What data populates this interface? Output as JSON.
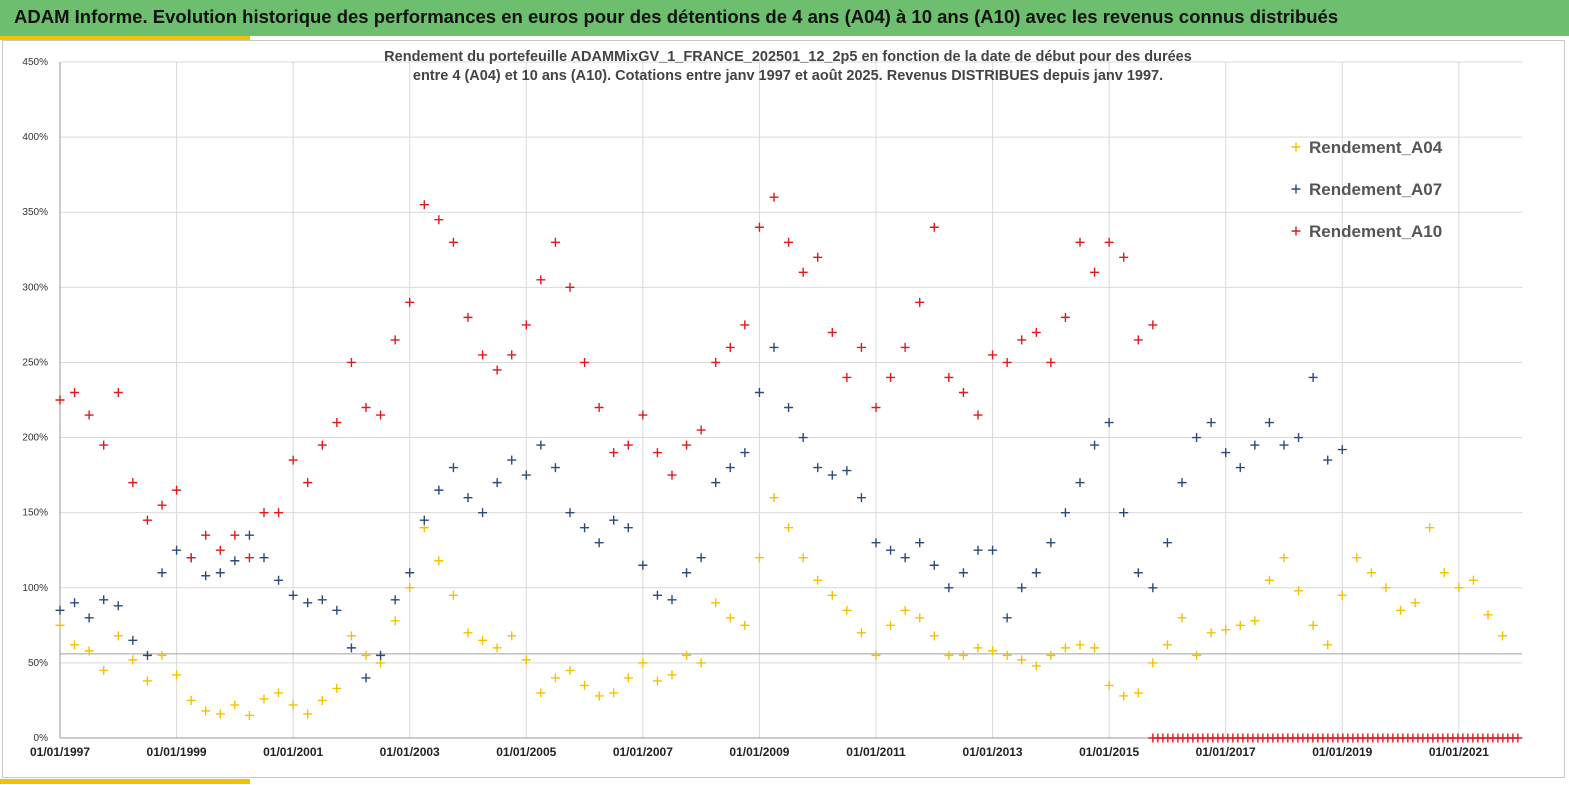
{
  "header": {
    "title": "ADAM Informe. Evolution historique des performances en euros pour des détentions de 4 ans (A04) à 10 ans (A10) avec les revenus connus distribués"
  },
  "chart_data": {
    "type": "scatter",
    "subtitle_lines": [
      "Rendement du portefeuille ADAMMixGV_1_FRANCE_202501_12_2p5  en fonction de la date de début pour des durées",
      "entre 4 (A04) et 10 ans (A10). Cotations  entre janv 1997 et août 2025. Revenus DISTRIBUES depuis janv 1997."
    ],
    "x_ticks": [
      "01/01/1997",
      "01/01/1999",
      "01/01/2001",
      "01/01/2003",
      "01/01/2005",
      "01/01/2007",
      "01/01/2009",
      "01/01/2011",
      "01/01/2013",
      "01/01/2015",
      "01/01/2017",
      "01/01/2019",
      "01/01/2021"
    ],
    "x_range": [
      "1997-01-01",
      "2022-02-01"
    ],
    "y_ticks": [
      "0%",
      "50%",
      "100%",
      "150%",
      "200%",
      "250%",
      "300%",
      "350%",
      "400%",
      "450%"
    ],
    "ylim": [
      0,
      450
    ],
    "grid": true,
    "legend_position": "top-right",
    "series": [
      {
        "name": "Rendement_A04",
        "color": "#f2c200",
        "points": [
          [
            "1997-01",
            75
          ],
          [
            "1997-04",
            62
          ],
          [
            "1997-07",
            58
          ],
          [
            "1997-10",
            45
          ],
          [
            "1998-01",
            68
          ],
          [
            "1998-04",
            52
          ],
          [
            "1998-07",
            38
          ],
          [
            "1998-10",
            55
          ],
          [
            "1999-01",
            42
          ],
          [
            "1999-04",
            25
          ],
          [
            "1999-07",
            18
          ],
          [
            "1999-10",
            16
          ],
          [
            "2000-01",
            22
          ],
          [
            "2000-04",
            15
          ],
          [
            "2000-07",
            26
          ],
          [
            "2000-10",
            30
          ],
          [
            "2001-01",
            22
          ],
          [
            "2001-04",
            16
          ],
          [
            "2001-07",
            25
          ],
          [
            "2001-10",
            33
          ],
          [
            "2002-01",
            68
          ],
          [
            "2002-04",
            55
          ],
          [
            "2002-07",
            50
          ],
          [
            "2002-10",
            78
          ],
          [
            "2003-01",
            100
          ],
          [
            "2003-04",
            140
          ],
          [
            "2003-07",
            118
          ],
          [
            "2003-10",
            95
          ],
          [
            "2004-01",
            70
          ],
          [
            "2004-04",
            65
          ],
          [
            "2004-07",
            60
          ],
          [
            "2004-10",
            68
          ],
          [
            "2005-01",
            52
          ],
          [
            "2005-04",
            30
          ],
          [
            "2005-07",
            40
          ],
          [
            "2005-10",
            45
          ],
          [
            "2006-01",
            35
          ],
          [
            "2006-04",
            28
          ],
          [
            "2006-07",
            30
          ],
          [
            "2006-10",
            40
          ],
          [
            "2007-01",
            50
          ],
          [
            "2007-04",
            38
          ],
          [
            "2007-07",
            42
          ],
          [
            "2007-10",
            55
          ],
          [
            "2008-01",
            50
          ],
          [
            "2008-04",
            90
          ],
          [
            "2008-07",
            80
          ],
          [
            "2008-10",
            75
          ],
          [
            "2009-01",
            120
          ],
          [
            "2009-04",
            160
          ],
          [
            "2009-07",
            140
          ],
          [
            "2009-10",
            120
          ],
          [
            "2010-01",
            105
          ],
          [
            "2010-04",
            95
          ],
          [
            "2010-07",
            85
          ],
          [
            "2010-10",
            70
          ],
          [
            "2011-01",
            55
          ],
          [
            "2011-04",
            75
          ],
          [
            "2011-07",
            85
          ],
          [
            "2011-10",
            80
          ],
          [
            "2012-01",
            68
          ],
          [
            "2012-04",
            55
          ],
          [
            "2012-07",
            55
          ],
          [
            "2012-10",
            60
          ],
          [
            "2013-01",
            58
          ],
          [
            "2013-04",
            55
          ],
          [
            "2013-07",
            52
          ],
          [
            "2013-10",
            48
          ],
          [
            "2014-01",
            55
          ],
          [
            "2014-04",
            60
          ],
          [
            "2014-07",
            62
          ],
          [
            "2014-10",
            60
          ],
          [
            "2015-01",
            35
          ],
          [
            "2015-04",
            28
          ],
          [
            "2015-07",
            30
          ],
          [
            "2015-10",
            50
          ],
          [
            "2016-01",
            62
          ],
          [
            "2016-04",
            80
          ],
          [
            "2016-07",
            55
          ],
          [
            "2016-10",
            70
          ],
          [
            "2017-01",
            72
          ],
          [
            "2017-04",
            75
          ],
          [
            "2017-07",
            78
          ],
          [
            "2017-10",
            105
          ],
          [
            "2018-01",
            120
          ],
          [
            "2018-04",
            98
          ],
          [
            "2018-07",
            75
          ],
          [
            "2018-10",
            62
          ],
          [
            "2019-01",
            95
          ],
          [
            "2019-04",
            120
          ],
          [
            "2019-07",
            110
          ],
          [
            "2019-10",
            100
          ],
          [
            "2020-01",
            85
          ],
          [
            "2020-04",
            90
          ],
          [
            "2020-07",
            140
          ],
          [
            "2020-10",
            110
          ],
          [
            "2021-01",
            100
          ],
          [
            "2021-04",
            105
          ],
          [
            "2021-07",
            82
          ],
          [
            "2021-10",
            68
          ]
        ]
      },
      {
        "name": "Rendement_A07",
        "color": "#2c4a7a",
        "points": [
          [
            "1997-01",
            85
          ],
          [
            "1997-04",
            90
          ],
          [
            "1997-07",
            80
          ],
          [
            "1997-10",
            92
          ],
          [
            "1998-01",
            88
          ],
          [
            "1998-04",
            65
          ],
          [
            "1998-07",
            55
          ],
          [
            "1998-10",
            110
          ],
          [
            "1999-01",
            125
          ],
          [
            "1999-04",
            120
          ],
          [
            "1999-07",
            108
          ],
          [
            "1999-10",
            110
          ],
          [
            "2000-01",
            118
          ],
          [
            "2000-04",
            135
          ],
          [
            "2000-07",
            120
          ],
          [
            "2000-10",
            105
          ],
          [
            "2001-01",
            95
          ],
          [
            "2001-04",
            90
          ],
          [
            "2001-07",
            92
          ],
          [
            "2001-10",
            85
          ],
          [
            "2002-01",
            60
          ],
          [
            "2002-04",
            40
          ],
          [
            "2002-07",
            55
          ],
          [
            "2002-10",
            92
          ],
          [
            "2003-01",
            110
          ],
          [
            "2003-04",
            145
          ],
          [
            "2003-07",
            165
          ],
          [
            "2003-10",
            180
          ],
          [
            "2004-01",
            160
          ],
          [
            "2004-04",
            150
          ],
          [
            "2004-07",
            170
          ],
          [
            "2004-10",
            185
          ],
          [
            "2005-01",
            175
          ],
          [
            "2005-04",
            195
          ],
          [
            "2005-07",
            180
          ],
          [
            "2005-10",
            150
          ],
          [
            "2006-01",
            140
          ],
          [
            "2006-04",
            130
          ],
          [
            "2006-07",
            145
          ],
          [
            "2006-10",
            140
          ],
          [
            "2007-01",
            115
          ],
          [
            "2007-04",
            95
          ],
          [
            "2007-07",
            92
          ],
          [
            "2007-10",
            110
          ],
          [
            "2008-01",
            120
          ],
          [
            "2008-04",
            170
          ],
          [
            "2008-07",
            180
          ],
          [
            "2008-10",
            190
          ],
          [
            "2009-01",
            230
          ],
          [
            "2009-04",
            260
          ],
          [
            "2009-07",
            220
          ],
          [
            "2009-10",
            200
          ],
          [
            "2010-01",
            180
          ],
          [
            "2010-04",
            175
          ],
          [
            "2010-07",
            178
          ],
          [
            "2010-10",
            160
          ],
          [
            "2011-01",
            130
          ],
          [
            "2011-04",
            125
          ],
          [
            "2011-07",
            120
          ],
          [
            "2011-10",
            130
          ],
          [
            "2012-01",
            115
          ],
          [
            "2012-04",
            100
          ],
          [
            "2012-07",
            110
          ],
          [
            "2012-10",
            125
          ],
          [
            "2013-01",
            125
          ],
          [
            "2013-04",
            80
          ],
          [
            "2013-07",
            100
          ],
          [
            "2013-10",
            110
          ],
          [
            "2014-01",
            130
          ],
          [
            "2014-04",
            150
          ],
          [
            "2014-07",
            170
          ],
          [
            "2014-10",
            195
          ],
          [
            "2015-01",
            210
          ],
          [
            "2015-04",
            150
          ],
          [
            "2015-07",
            110
          ],
          [
            "2015-10",
            100
          ],
          [
            "2016-01",
            130
          ],
          [
            "2016-04",
            170
          ],
          [
            "2016-07",
            200
          ],
          [
            "2016-10",
            210
          ],
          [
            "2017-01",
            190
          ],
          [
            "2017-04",
            180
          ],
          [
            "2017-07",
            195
          ],
          [
            "2017-10",
            210
          ],
          [
            "2018-01",
            195
          ],
          [
            "2018-04",
            200
          ],
          [
            "2018-07",
            240
          ],
          [
            "2018-10",
            185
          ],
          [
            "2019-01",
            192
          ]
        ]
      },
      {
        "name": "Rendement_A10",
        "color": "#e0191d",
        "points": [
          [
            "1997-01",
            225
          ],
          [
            "1997-04",
            230
          ],
          [
            "1997-07",
            215
          ],
          [
            "1997-10",
            195
          ],
          [
            "1998-01",
            230
          ],
          [
            "1998-04",
            170
          ],
          [
            "1998-07",
            145
          ],
          [
            "1998-10",
            155
          ],
          [
            "1999-01",
            165
          ],
          [
            "1999-04",
            120
          ],
          [
            "1999-07",
            135
          ],
          [
            "1999-10",
            125
          ],
          [
            "2000-01",
            135
          ],
          [
            "2000-04",
            120
          ],
          [
            "2000-07",
            150
          ],
          [
            "2000-10",
            150
          ],
          [
            "2001-01",
            185
          ],
          [
            "2001-04",
            170
          ],
          [
            "2001-07",
            195
          ],
          [
            "2001-10",
            210
          ],
          [
            "2002-01",
            250
          ],
          [
            "2002-04",
            220
          ],
          [
            "2002-07",
            215
          ],
          [
            "2002-10",
            265
          ],
          [
            "2003-01",
            290
          ],
          [
            "2003-04",
            355
          ],
          [
            "2003-07",
            345
          ],
          [
            "2003-10",
            330
          ],
          [
            "2004-01",
            280
          ],
          [
            "2004-04",
            255
          ],
          [
            "2004-07",
            245
          ],
          [
            "2004-10",
            255
          ],
          [
            "2005-01",
            275
          ],
          [
            "2005-04",
            305
          ],
          [
            "2005-07",
            330
          ],
          [
            "2005-10",
            300
          ],
          [
            "2006-01",
            250
          ],
          [
            "2006-04",
            220
          ],
          [
            "2006-07",
            190
          ],
          [
            "2006-10",
            195
          ],
          [
            "2007-01",
            215
          ],
          [
            "2007-04",
            190
          ],
          [
            "2007-07",
            175
          ],
          [
            "2007-10",
            195
          ],
          [
            "2008-01",
            205
          ],
          [
            "2008-04",
            250
          ],
          [
            "2008-07",
            260
          ],
          [
            "2008-10",
            275
          ],
          [
            "2009-01",
            340
          ],
          [
            "2009-04",
            360
          ],
          [
            "2009-07",
            330
          ],
          [
            "2009-10",
            310
          ],
          [
            "2010-01",
            320
          ],
          [
            "2010-04",
            270
          ],
          [
            "2010-07",
            240
          ],
          [
            "2010-10",
            260
          ],
          [
            "2011-01",
            220
          ],
          [
            "2011-04",
            240
          ],
          [
            "2011-07",
            260
          ],
          [
            "2011-10",
            290
          ],
          [
            "2012-01",
            340
          ],
          [
            "2012-04",
            240
          ],
          [
            "2012-07",
            230
          ],
          [
            "2012-10",
            215
          ],
          [
            "2013-01",
            255
          ],
          [
            "2013-04",
            250
          ],
          [
            "2013-07",
            265
          ],
          [
            "2013-10",
            270
          ],
          [
            "2014-01",
            250
          ],
          [
            "2014-04",
            280
          ],
          [
            "2014-07",
            330
          ],
          [
            "2014-10",
            310
          ],
          [
            "2015-01",
            330
          ],
          [
            "2015-04",
            320
          ],
          [
            "2015-07",
            265
          ],
          [
            "2015-10",
            275
          ]
        ]
      }
    ],
    "baseline_marker": {
      "color": "#e0191d",
      "from": "2015-10-01",
      "to": "2022-02-01",
      "value": 0
    },
    "reference_line": {
      "value": 56
    }
  }
}
